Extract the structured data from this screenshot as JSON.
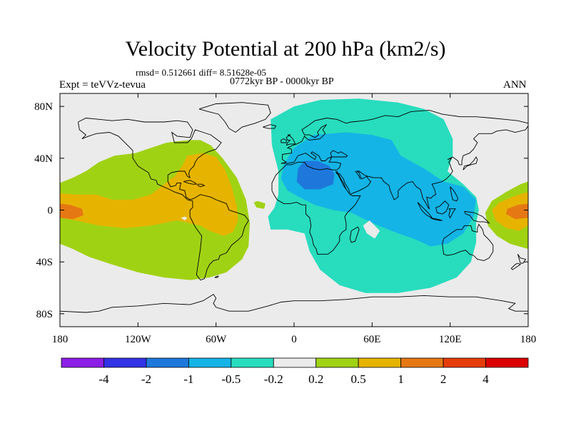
{
  "title": "Velocity Potential at 200 hPa (km2/s)",
  "subtitle_stats": "rmsd= 0.512661 diff= 8.51628e-05",
  "period_label": "0772kyr BP - 0000kyr BP",
  "left_label": "Expt = teVVz-tevua",
  "right_label": "ANN",
  "chart_data": {
    "type": "heatmap",
    "projection": "equirectangular",
    "x_range": [
      -180,
      180
    ],
    "y_range": [
      -90,
      90
    ],
    "x_ticks": [
      {
        "value": -180,
        "label": "180"
      },
      {
        "value": -120,
        "label": "120W"
      },
      {
        "value": -60,
        "label": "60W"
      },
      {
        "value": 0,
        "label": "0"
      },
      {
        "value": 60,
        "label": "60E"
      },
      {
        "value": 120,
        "label": "120E"
      },
      {
        "value": 180,
        "label": "180"
      }
    ],
    "y_ticks": [
      {
        "value": 80,
        "label": "80N"
      },
      {
        "value": 40,
        "label": "40N"
      },
      {
        "value": 0,
        "label": "0"
      },
      {
        "value": -40,
        "label": "40S"
      },
      {
        "value": -80,
        "label": "80S"
      }
    ],
    "colorbar": {
      "labels": [
        "-4",
        "-2",
        "-1",
        "-0.5",
        "-0.2",
        "0.2",
        "0.5",
        "1",
        "2",
        "4"
      ],
      "colors": [
        "#8c1ee6",
        "#3232e6",
        "#1e78dc",
        "#14b4e6",
        "#28dcbe",
        "#ebebeb",
        "#a0d214",
        "#e6b400",
        "#e67814",
        "#e63c0a",
        "#dc0000"
      ]
    },
    "regions": [
      {
        "name": "Americas positive",
        "level": "0.2 to 0.5",
        "color": "#a0d214",
        "outline": [
          [
            -180,
            21
          ],
          [
            -170,
            25
          ],
          [
            -160,
            30
          ],
          [
            -150,
            37
          ],
          [
            -138,
            42
          ],
          [
            -122,
            44
          ],
          [
            -110,
            48
          ],
          [
            -98,
            52
          ],
          [
            -90,
            53
          ],
          [
            -80,
            54
          ],
          [
            -72,
            54
          ],
          [
            -64,
            50
          ],
          [
            -55,
            40
          ],
          [
            -44,
            25
          ],
          [
            -37,
            8
          ],
          [
            -34,
            -10
          ],
          [
            -35,
            -28
          ],
          [
            -40,
            -38
          ],
          [
            -52,
            -48
          ],
          [
            -65,
            -52
          ],
          [
            -80,
            -54
          ],
          [
            -100,
            -52
          ],
          [
            -120,
            -48
          ],
          [
            -140,
            -42
          ],
          [
            -158,
            -36
          ],
          [
            -170,
            -30
          ],
          [
            -180,
            -26
          ]
        ]
      },
      {
        "name": "Americas central",
        "level": "0.5 to 1",
        "color": "#e6b400",
        "outline": [
          [
            -180,
            13
          ],
          [
            -168,
            12
          ],
          [
            -152,
            12
          ],
          [
            -140,
            8
          ],
          [
            -124,
            8
          ],
          [
            -110,
            12
          ],
          [
            -100,
            20
          ],
          [
            -92,
            26
          ],
          [
            -86,
            34
          ],
          [
            -82,
            42
          ],
          [
            -70,
            44
          ],
          [
            -60,
            41
          ],
          [
            -53,
            31
          ],
          [
            -48,
            18
          ],
          [
            -44,
            3
          ],
          [
            -43,
            -8
          ],
          [
            -47,
            -17
          ],
          [
            -54,
            -20
          ],
          [
            -65,
            -16
          ],
          [
            -72,
            -12
          ],
          [
            -90,
            -8
          ],
          [
            -110,
            -12
          ],
          [
            -130,
            -14
          ],
          [
            -150,
            -12
          ],
          [
            -168,
            -8
          ],
          [
            -180,
            -6
          ]
        ]
      },
      {
        "name": "Central Pacific max",
        "level": "1 to 2",
        "color": "#e67814",
        "outline": [
          [
            -180,
            5
          ],
          [
            -172,
            4
          ],
          [
            -163,
            1
          ],
          [
            -162,
            -4
          ],
          [
            -170,
            -7
          ],
          [
            -180,
            -6
          ]
        ]
      },
      {
        "name": "Western Pacific positive",
        "level": "0.2 to 0.5",
        "color": "#a0d214",
        "outline": [
          [
            180,
            -30
          ],
          [
            180,
            22
          ],
          [
            174,
            20
          ],
          [
            163,
            14
          ],
          [
            152,
            7
          ],
          [
            147,
            -2
          ],
          [
            149,
            -12
          ],
          [
            156,
            -20
          ],
          [
            166,
            -26
          ]
        ]
      },
      {
        "name": "Western Pacific central",
        "level": "0.5 to 1",
        "color": "#e6b400",
        "outline": [
          [
            180,
            14
          ],
          [
            170,
            11
          ],
          [
            158,
            6
          ],
          [
            152,
            0
          ],
          [
            155,
            -8
          ],
          [
            163,
            -14
          ],
          [
            173,
            -16
          ],
          [
            180,
            -12
          ]
        ]
      },
      {
        "name": "Western Pacific max",
        "level": "1 to 2",
        "color": "#e67814",
        "outline": [
          [
            180,
            5
          ],
          [
            172,
            4
          ],
          [
            164,
            1
          ],
          [
            163,
            -3
          ],
          [
            170,
            -7
          ],
          [
            180,
            -6
          ]
        ]
      },
      {
        "name": "Eastern hemisphere negative",
        "level": "-0.5 to -0.2",
        "color": "#28dcbe",
        "outline": [
          [
            -18,
            70
          ],
          [
            0,
            80
          ],
          [
            20,
            85
          ],
          [
            50,
            86
          ],
          [
            80,
            83
          ],
          [
            100,
            78
          ],
          [
            115,
            70
          ],
          [
            122,
            55
          ],
          [
            122,
            42
          ],
          [
            118,
            30
          ],
          [
            130,
            20
          ],
          [
            140,
            10
          ],
          [
            142,
            0
          ],
          [
            140,
            -10
          ],
          [
            140,
            -25
          ],
          [
            136,
            -40
          ],
          [
            125,
            -52
          ],
          [
            105,
            -60
          ],
          [
            80,
            -64
          ],
          [
            55,
            -64
          ],
          [
            35,
            -58
          ],
          [
            20,
            -46
          ],
          [
            12,
            -32
          ],
          [
            8,
            -18
          ],
          [
            -5,
            -15
          ],
          [
            -18,
            -15
          ],
          [
            -20,
            -5
          ],
          [
            -15,
            2
          ],
          [
            -12,
            12
          ],
          [
            -12,
            30
          ],
          [
            -17,
            50
          ]
        ]
      },
      {
        "name": "Eastern hemisphere inner",
        "level": "-1 to -0.5",
        "color": "#14b4e6",
        "outline": [
          [
            -8,
            35
          ],
          [
            0,
            48
          ],
          [
            15,
            58
          ],
          [
            40,
            60
          ],
          [
            60,
            58
          ],
          [
            75,
            54
          ],
          [
            82,
            42
          ],
          [
            100,
            32
          ],
          [
            115,
            22
          ],
          [
            130,
            18
          ],
          [
            140,
            8
          ],
          [
            138,
            -5
          ],
          [
            130,
            -18
          ],
          [
            118,
            -26
          ],
          [
            105,
            -28
          ],
          [
            92,
            -22
          ],
          [
            80,
            -18
          ],
          [
            65,
            -12
          ],
          [
            52,
            -6
          ],
          [
            44,
            -2
          ],
          [
            30,
            0
          ],
          [
            16,
            4
          ],
          [
            4,
            10
          ],
          [
            -5,
            15
          ],
          [
            -10,
            24
          ]
        ]
      },
      {
        "name": "North Africa min",
        "level": "-2 to -1",
        "color": "#1e78dc",
        "outline": [
          [
            2,
            22
          ],
          [
            3,
            32
          ],
          [
            8,
            38
          ],
          [
            18,
            38
          ],
          [
            27,
            34
          ],
          [
            31,
            28
          ],
          [
            30,
            20
          ],
          [
            20,
            16
          ],
          [
            8,
            16
          ]
        ]
      },
      {
        "name": "Atlantic island",
        "level": "0.2 to 0.5",
        "color": "#a0d214",
        "outline": [
          [
            -22,
            5
          ],
          [
            -28,
            7
          ],
          [
            -31,
            6
          ],
          [
            -29,
            2
          ],
          [
            -23,
            1
          ]
        ]
      },
      {
        "name": "Pacific hole",
        "level": "-0.2 to 0.2",
        "color": "#ebebeb",
        "outline": [
          [
            -87,
            -6
          ],
          [
            -84,
            -5
          ],
          [
            -82,
            -6
          ],
          [
            -84,
            -8
          ]
        ]
      },
      {
        "name": "Indian Ocean hole",
        "level": "-0.2 to 0.2",
        "color": "#ebebeb",
        "outline": [
          [
            53,
            -12
          ],
          [
            58,
            -8
          ],
          [
            66,
            -16
          ],
          [
            62,
            -22
          ],
          [
            56,
            -18
          ]
        ]
      }
    ],
    "grid": false
  }
}
